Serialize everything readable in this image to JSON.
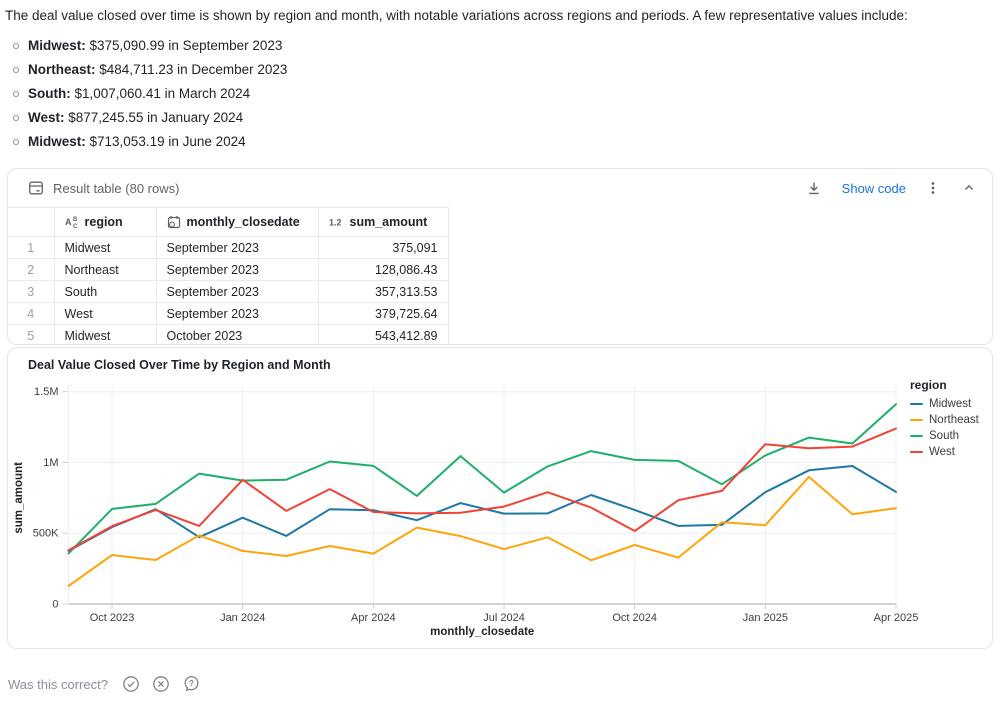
{
  "intro": {
    "text": "The deal value closed over time is shown by region and month, with notable variations across regions and periods. A few representative values include:"
  },
  "bullets": [
    {
      "bold": "Midwest:",
      "text": " $375,090.99 in September 2023"
    },
    {
      "bold": "Northeast:",
      "text": " $484,711.23 in December 2023"
    },
    {
      "bold": "South:",
      "text": " $1,007,060.41 in March 2024"
    },
    {
      "bold": "West:",
      "text": " $877,245.55 in January 2024"
    },
    {
      "bold": "Midwest:",
      "text": " $713,053.19 in June 2024"
    }
  ],
  "result_panel": {
    "title": "Result table (80 rows)",
    "show_code_label": "Show code"
  },
  "table": {
    "columns": [
      {
        "label": "region",
        "type": "text"
      },
      {
        "label": "monthly_closedate",
        "type": "date"
      },
      {
        "label": "sum_amount",
        "type": "number"
      }
    ],
    "rows": [
      {
        "n": "1",
        "region": "Midwest",
        "date": "September 2023",
        "amount": "375,091"
      },
      {
        "n": "2",
        "region": "Northeast",
        "date": "September 2023",
        "amount": "128,086.43"
      },
      {
        "n": "3",
        "region": "South",
        "date": "September 2023",
        "amount": "357,313.53"
      },
      {
        "n": "4",
        "region": "West",
        "date": "September 2023",
        "amount": "379,725.64"
      },
      {
        "n": "5",
        "region": "Midwest",
        "date": "October 2023",
        "amount": "543,412.89"
      }
    ]
  },
  "chart_data": {
    "type": "line",
    "title": "Deal Value Closed Over Time by Region and Month",
    "xlabel": "monthly_closedate",
    "ylabel": "sum_amount",
    "legend_title": "region",
    "legend_position": "top-right-outside",
    "grid": true,
    "ylim": [
      0,
      1500000
    ],
    "categories": [
      "Sep 2023",
      "Oct 2023",
      "Nov 2023",
      "Dec 2023",
      "Jan 2024",
      "Feb 2024",
      "Mar 2024",
      "Apr 2024",
      "May 2024",
      "Jun 2024",
      "Jul 2024",
      "Aug 2024",
      "Sep 2024",
      "Oct 2024",
      "Nov 2024",
      "Dec 2024",
      "Jan 2025",
      "Feb 2025",
      "Mar 2025",
      "Apr 2025"
    ],
    "x_ticks": [
      {
        "index": 1,
        "label": "Oct 2023"
      },
      {
        "index": 4,
        "label": "Jan 2024"
      },
      {
        "index": 7,
        "label": "Apr 2024"
      },
      {
        "index": 10,
        "label": "Jul 2024"
      },
      {
        "index": 13,
        "label": "Oct 2024"
      },
      {
        "index": 16,
        "label": "Jan 2025"
      },
      {
        "index": 19,
        "label": "Apr 2025"
      }
    ],
    "y_ticks": [
      {
        "value": 0,
        "label": "0"
      },
      {
        "value": 500000,
        "label": "500K"
      },
      {
        "value": 1000000,
        "label": "1M"
      },
      {
        "value": 1500000,
        "label": "1.5M"
      }
    ],
    "series": [
      {
        "name": "Midwest",
        "color": "#1f78a4",
        "values": [
          375090.99,
          543412.89,
          670000,
          472000,
          610000,
          481000,
          670000,
          663000,
          592000,
          713053.19,
          639000,
          640000,
          770000,
          665000,
          552000,
          559000,
          790000,
          945000,
          975000,
          792000
        ]
      },
      {
        "name": "Northeast",
        "color": "#ffa40b",
        "values": [
          128086.43,
          346000,
          311000,
          484711.23,
          375000,
          339000,
          410000,
          356000,
          540000,
          480000,
          388000,
          471000,
          309000,
          417000,
          328000,
          578000,
          557000,
          898000,
          634000,
          677000
        ]
      },
      {
        "name": "South",
        "color": "#1db068",
        "values": [
          357313.53,
          672000,
          707000,
          921000,
          872000,
          878000,
          1007060.41,
          976000,
          764000,
          1045000,
          787000,
          972000,
          1080000,
          1018000,
          1011000,
          846000,
          1050000,
          1176000,
          1134000,
          1412000
        ]
      },
      {
        "name": "West",
        "color": "#f24236",
        "values": [
          379725.64,
          550000,
          665000,
          552000,
          877245.55,
          658000,
          812000,
          650000,
          640000,
          645000,
          688000,
          790000,
          681000,
          516000,
          733000,
          799000,
          1129000,
          1101000,
          1112000,
          1240000
        ]
      }
    ]
  },
  "footer": {
    "prompt": "Was this correct?"
  }
}
